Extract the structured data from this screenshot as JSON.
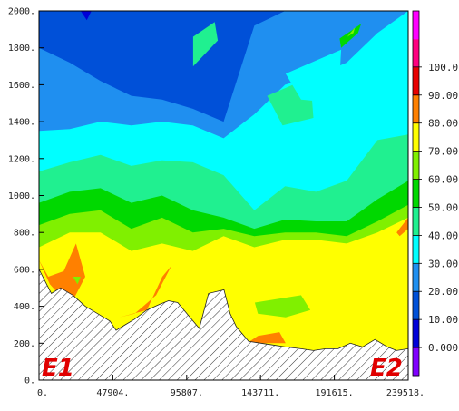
{
  "chart_data": {
    "type": "contour",
    "x_ticks": [
      "0.",
      "47904.",
      "95807.",
      "143711.",
      "191615.",
      "239518."
    ],
    "y_ticks": [
      "0.",
      "200.",
      "400.",
      "600.",
      "800.",
      "1000.",
      "1200.",
      "1400.",
      "1600.",
      "1800.",
      "2000."
    ],
    "xlim": [
      0,
      239518
    ],
    "ylim": [
      0,
      2000
    ],
    "colorbar": {
      "labels": [
        "0.000",
        "10.00",
        "20.00",
        "30.00",
        "40.00",
        "50.00",
        "60.00",
        "70.00",
        "80.00",
        "90.00",
        "100.0"
      ],
      "level_colors": [
        "#8000ff",
        "#0000d8",
        "#0050d8",
        "#1f8ff0",
        "#00ffff",
        "#20f090",
        "#00d800",
        "#80f000",
        "#ffff00",
        "#ff8000",
        "#e80000",
        "#ff0080",
        "#ff00ff"
      ]
    },
    "contour_bands": [
      {
        "level_min": 10,
        "level_max": 20,
        "color": "#0050d8",
        "profile_y": [
          2000,
          2000,
          2000,
          2000,
          2000,
          2000,
          2000,
          2000,
          2000,
          2000,
          2000,
          2000,
          2000
        ]
      },
      {
        "level_min": 20,
        "level_max": 30,
        "color": "#1f8ff0",
        "profile_y": [
          1800,
          1720,
          1620,
          1540,
          1520,
          1470,
          1400,
          1920,
          2000,
          2000,
          2000,
          2000,
          2000
        ]
      },
      {
        "level_min": 30,
        "level_max": 40,
        "color": "#00ffff",
        "profile_y": [
          1350,
          1360,
          1400,
          1380,
          1400,
          1380,
          1310,
          1440,
          1600,
          1650,
          1720,
          1880,
          2000
        ]
      },
      {
        "level_min": 40,
        "level_max": 50,
        "color": "#20f090",
        "profile_y": [
          1130,
          1180,
          1220,
          1160,
          1190,
          1180,
          1110,
          920,
          1050,
          1020,
          1080,
          1300,
          1330
        ]
      },
      {
        "level_min": 50,
        "level_max": 60,
        "color": "#00d800",
        "profile_y": [
          960,
          1020,
          1040,
          960,
          1000,
          920,
          880,
          820,
          870,
          860,
          860,
          980,
          1080
        ]
      },
      {
        "level_min": 60,
        "level_max": 70,
        "color": "#80f000",
        "profile_y": [
          840,
          900,
          920,
          820,
          880,
          800,
          820,
          780,
          800,
          800,
          780,
          860,
          950
        ]
      },
      {
        "level_min": 70,
        "level_max": 80,
        "color": "#ffff00",
        "profile_y": [
          720,
          800,
          800,
          700,
          740,
          700,
          780,
          720,
          760,
          760,
          740,
          800,
          880
        ]
      }
    ],
    "patches": [
      {
        "color": "#ff8000",
        "points": [
          [
            0,
            650
          ],
          [
            7000,
            520
          ],
          [
            20000,
            400
          ],
          [
            30000,
            560
          ],
          [
            24000,
            740
          ],
          [
            16000,
            590
          ],
          [
            6000,
            560
          ]
        ]
      },
      {
        "color": "#ff8000",
        "points": [
          [
            52000,
            340
          ],
          [
            70000,
            380
          ],
          [
            80000,
            560
          ],
          [
            86000,
            620
          ],
          [
            76000,
            460
          ],
          [
            62000,
            360
          ]
        ]
      },
      {
        "color": "#ff8000",
        "points": [
          [
            135000,
            200
          ],
          [
            160000,
            200
          ],
          [
            156000,
            260
          ],
          [
            142000,
            240
          ]
        ]
      },
      {
        "color": "#ff8000",
        "points": [
          [
            232000,
            800
          ],
          [
            239518,
            880
          ],
          [
            239518,
            820
          ],
          [
            234000,
            780
          ]
        ]
      },
      {
        "color": "#80f000",
        "points": [
          [
            140000,
            420
          ],
          [
            170000,
            460
          ],
          [
            176000,
            380
          ],
          [
            160000,
            340
          ],
          [
            142000,
            360
          ]
        ]
      },
      {
        "color": "#80f000",
        "points": [
          [
            22000,
            560
          ],
          [
            27000,
            560
          ],
          [
            25000,
            520
          ]
        ]
      },
      {
        "color": "#20f090",
        "points": [
          [
            148000,
            1540
          ],
          [
            176000,
            1640
          ],
          [
            178000,
            1420
          ],
          [
            158000,
            1380
          ]
        ]
      },
      {
        "color": "#20f090",
        "points": [
          [
            100000,
            1700
          ],
          [
            116000,
            1840
          ],
          [
            114000,
            1940
          ],
          [
            100000,
            1860
          ]
        ]
      },
      {
        "color": "#00d800",
        "points": [
          [
            195000,
            1850
          ],
          [
            209000,
            1930
          ],
          [
            207000,
            1880
          ],
          [
            196000,
            1800
          ]
        ]
      },
      {
        "color": "#80f000",
        "points": [
          [
            200000,
            1860
          ],
          [
            205000,
            1910
          ],
          [
            204000,
            1880
          ]
        ]
      },
      {
        "color": "#00ffff",
        "points": [
          [
            160000,
            1660
          ],
          [
            196000,
            1790
          ],
          [
            194000,
            1500
          ],
          [
            170000,
            1520
          ]
        ]
      },
      {
        "color": "#0050d8",
        "points": [
          [
            25000,
            2000
          ],
          [
            36000,
            2000
          ],
          [
            32000,
            1920
          ],
          [
            28000,
            1920
          ]
        ]
      },
      {
        "color": "#0000d8",
        "points": [
          [
            27000,
            2000
          ],
          [
            34000,
            2000
          ],
          [
            31000,
            1950
          ]
        ]
      }
    ],
    "terrain": {
      "x": [
        0,
        8000,
        14000,
        22000,
        30000,
        38000,
        46000,
        50000,
        56000,
        62000,
        70000,
        78000,
        84000,
        90000,
        100000,
        104000,
        110000,
        120000,
        124000,
        128000,
        136000,
        144000,
        152000,
        160000,
        170000,
        178000,
        186000,
        194000,
        202000,
        210000,
        218000,
        226000,
        232000,
        239518
      ],
      "y": [
        600,
        470,
        500,
        460,
        400,
        360,
        320,
        270,
        300,
        330,
        380,
        410,
        430,
        420,
        320,
        280,
        470,
        490,
        360,
        290,
        210,
        200,
        190,
        180,
        170,
        160,
        170,
        170,
        200,
        180,
        220,
        180,
        160,
        170
      ]
    },
    "endpoint_labels": [
      "E1",
      "E2"
    ]
  }
}
